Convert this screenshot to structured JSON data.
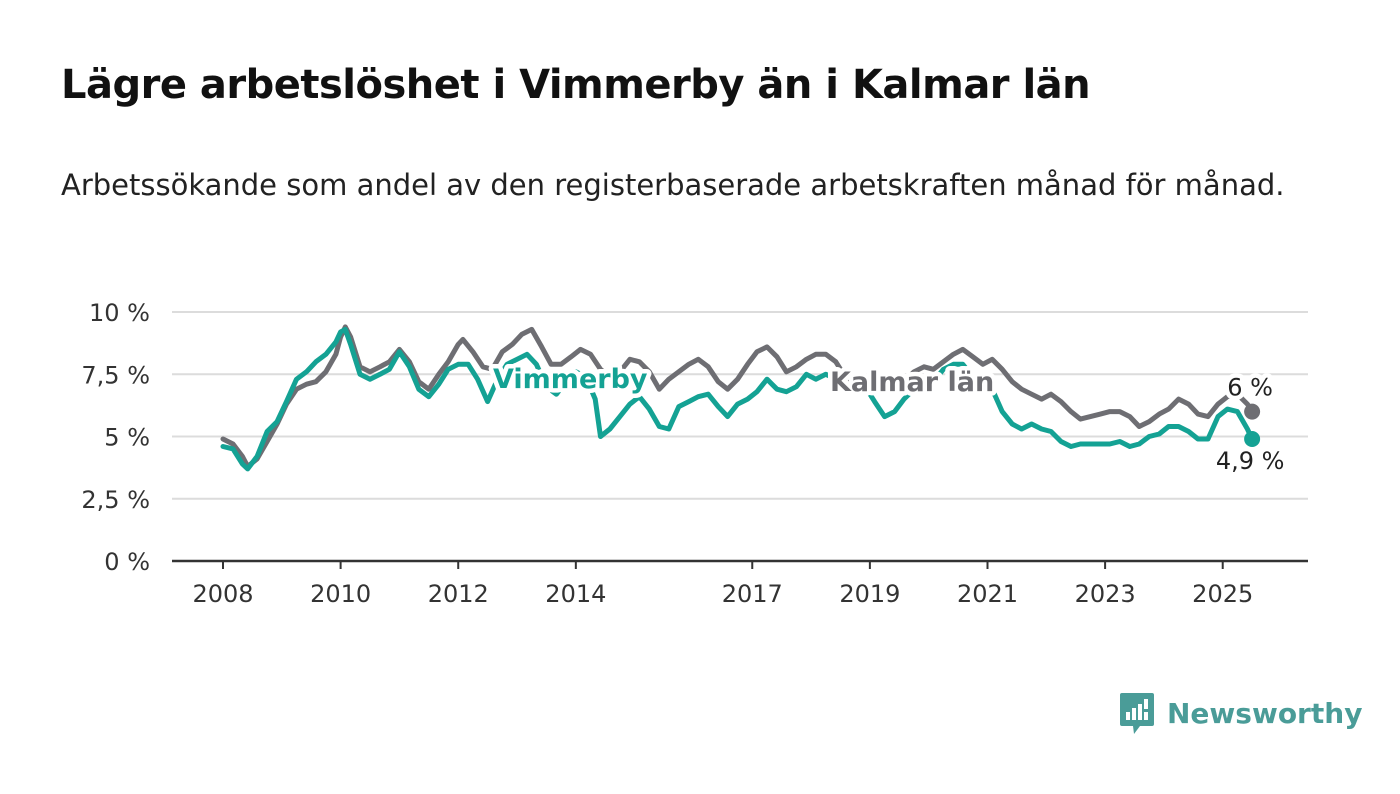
{
  "title": "Lägre arbetslöshet i Vimmerby än i Kalmar län",
  "subtitle": "Arbetssökande som andel av den registerbaserade arbetskraften månad för månad.",
  "brand": {
    "name": "Newsworthy",
    "icon": "newsworthy-logo-icon",
    "color": "#4a9c98"
  },
  "chart_data": {
    "type": "line",
    "title": "Lägre arbetslöshet i Vimmerby än i Kalmar län",
    "subtitle": "Arbetssökande som andel av den registerbaserade arbetskraften månad för månad.",
    "xlabel": "",
    "ylabel": "",
    "xlim": [
      2008.0,
      2025.6
    ],
    "ylim": [
      0,
      10
    ],
    "x_ticks": [
      2008,
      2010,
      2012,
      2014,
      2017,
      2019,
      2021,
      2023,
      2025
    ],
    "x_tick_labels": [
      "2008",
      "2010",
      "2012",
      "2014",
      "2017",
      "2019",
      "2021",
      "2023",
      "2025"
    ],
    "y_ticks": [
      0,
      2.5,
      5,
      7.5,
      10
    ],
    "y_tick_labels": [
      "0 %",
      "2,5 %",
      "5 %",
      "7,5 %",
      "10 %"
    ],
    "grid": true,
    "legend": "inline labels on lines",
    "series": [
      {
        "name": "Kalmar län",
        "color": "#6e6e73",
        "label": "Kalmar län",
        "end_label": "6 %",
        "points": [
          [
            2008.0,
            4.9
          ],
          [
            2008.17,
            4.7
          ],
          [
            2008.33,
            4.2
          ],
          [
            2008.42,
            3.8
          ],
          [
            2008.58,
            4.1
          ],
          [
            2008.75,
            4.8
          ],
          [
            2008.92,
            5.5
          ],
          [
            2009.08,
            6.3
          ],
          [
            2009.25,
            6.9
          ],
          [
            2009.42,
            7.1
          ],
          [
            2009.58,
            7.2
          ],
          [
            2009.75,
            7.6
          ],
          [
            2009.92,
            8.3
          ],
          [
            2010.0,
            9.0
          ],
          [
            2010.08,
            9.4
          ],
          [
            2010.17,
            9.0
          ],
          [
            2010.33,
            7.8
          ],
          [
            2010.5,
            7.6
          ],
          [
            2010.67,
            7.8
          ],
          [
            2010.83,
            8.0
          ],
          [
            2011.0,
            8.5
          ],
          [
            2011.17,
            8.0
          ],
          [
            2011.33,
            7.2
          ],
          [
            2011.5,
            6.9
          ],
          [
            2011.67,
            7.5
          ],
          [
            2011.83,
            8.0
          ],
          [
            2012.0,
            8.7
          ],
          [
            2012.08,
            8.9
          ],
          [
            2012.25,
            8.4
          ],
          [
            2012.42,
            7.8
          ],
          [
            2012.58,
            7.7
          ],
          [
            2012.75,
            8.4
          ],
          [
            2012.92,
            8.7
          ],
          [
            2013.08,
            9.1
          ],
          [
            2013.25,
            9.3
          ],
          [
            2013.42,
            8.6
          ],
          [
            2013.58,
            7.9
          ],
          [
            2013.75,
            7.9
          ],
          [
            2013.92,
            8.2
          ],
          [
            2014.08,
            8.5
          ],
          [
            2014.25,
            8.3
          ],
          [
            2014.42,
            7.7
          ],
          [
            2014.58,
            7.4
          ],
          [
            2014.75,
            7.6
          ],
          [
            2014.92,
            8.1
          ],
          [
            2015.08,
            8.0
          ],
          [
            2015.25,
            7.6
          ],
          [
            2015.42,
            6.9
          ],
          [
            2015.58,
            7.3
          ],
          [
            2015.75,
            7.6
          ],
          [
            2015.92,
            7.9
          ],
          [
            2016.08,
            8.1
          ],
          [
            2016.25,
            7.8
          ],
          [
            2016.42,
            7.2
          ],
          [
            2016.58,
            6.9
          ],
          [
            2016.75,
            7.3
          ],
          [
            2016.92,
            7.9
          ],
          [
            2017.08,
            8.4
          ],
          [
            2017.25,
            8.6
          ],
          [
            2017.42,
            8.2
          ],
          [
            2017.58,
            7.6
          ],
          [
            2017.75,
            7.8
          ],
          [
            2017.92,
            8.1
          ],
          [
            2018.08,
            8.3
          ],
          [
            2018.25,
            8.3
          ],
          [
            2018.42,
            8.0
          ],
          [
            2018.58,
            7.4
          ],
          [
            2018.75,
            7.2
          ],
          [
            2018.92,
            7.4
          ],
          [
            2019.08,
            7.3
          ],
          [
            2019.25,
            7.2
          ],
          [
            2019.42,
            7.3
          ],
          [
            2019.58,
            7.2
          ],
          [
            2019.75,
            7.6
          ],
          [
            2019.92,
            7.8
          ],
          [
            2020.08,
            7.7
          ],
          [
            2020.25,
            8.0
          ],
          [
            2020.42,
            8.3
          ],
          [
            2020.58,
            8.5
          ],
          [
            2020.75,
            8.2
          ],
          [
            2020.92,
            7.9
          ],
          [
            2021.08,
            8.1
          ],
          [
            2021.25,
            7.7
          ],
          [
            2021.42,
            7.2
          ],
          [
            2021.58,
            6.9
          ],
          [
            2021.75,
            6.7
          ],
          [
            2021.92,
            6.5
          ],
          [
            2022.08,
            6.7
          ],
          [
            2022.25,
            6.4
          ],
          [
            2022.42,
            6.0
          ],
          [
            2022.58,
            5.7
          ],
          [
            2022.75,
            5.8
          ],
          [
            2022.92,
            5.9
          ],
          [
            2023.08,
            6.0
          ],
          [
            2023.25,
            6.0
          ],
          [
            2023.42,
            5.8
          ],
          [
            2023.58,
            5.4
          ],
          [
            2023.75,
            5.6
          ],
          [
            2023.92,
            5.9
          ],
          [
            2024.08,
            6.1
          ],
          [
            2024.25,
            6.5
          ],
          [
            2024.42,
            6.3
          ],
          [
            2024.58,
            5.9
          ],
          [
            2024.75,
            5.8
          ],
          [
            2024.92,
            6.3
          ],
          [
            2025.08,
            6.6
          ],
          [
            2025.25,
            6.7
          ],
          [
            2025.42,
            6.3
          ],
          [
            2025.5,
            6.0
          ]
        ]
      },
      {
        "name": "Vimmerby",
        "color": "#14a294",
        "label": "Vimmerby",
        "end_label": "4,9 %",
        "points": [
          [
            2008.0,
            4.6
          ],
          [
            2008.17,
            4.5
          ],
          [
            2008.33,
            3.9
          ],
          [
            2008.42,
            3.7
          ],
          [
            2008.58,
            4.2
          ],
          [
            2008.75,
            5.2
          ],
          [
            2008.92,
            5.6
          ],
          [
            2009.08,
            6.4
          ],
          [
            2009.25,
            7.3
          ],
          [
            2009.42,
            7.6
          ],
          [
            2009.58,
            8.0
          ],
          [
            2009.75,
            8.3
          ],
          [
            2009.92,
            8.8
          ],
          [
            2010.0,
            9.2
          ],
          [
            2010.08,
            9.3
          ],
          [
            2010.17,
            8.7
          ],
          [
            2010.33,
            7.5
          ],
          [
            2010.5,
            7.3
          ],
          [
            2010.67,
            7.5
          ],
          [
            2010.83,
            7.7
          ],
          [
            2011.0,
            8.4
          ],
          [
            2011.17,
            7.8
          ],
          [
            2011.33,
            6.9
          ],
          [
            2011.5,
            6.6
          ],
          [
            2011.67,
            7.1
          ],
          [
            2011.83,
            7.7
          ],
          [
            2012.0,
            7.9
          ],
          [
            2012.17,
            7.9
          ],
          [
            2012.33,
            7.3
          ],
          [
            2012.5,
            6.4
          ],
          [
            2012.67,
            7.3
          ],
          [
            2012.83,
            7.9
          ],
          [
            2013.0,
            8.1
          ],
          [
            2013.17,
            8.3
          ],
          [
            2013.33,
            7.9
          ],
          [
            2013.5,
            7.0
          ],
          [
            2013.67,
            6.7
          ],
          [
            2013.83,
            7.2
          ],
          [
            2014.0,
            7.6
          ],
          [
            2014.17,
            7.4
          ],
          [
            2014.33,
            6.5
          ],
          [
            2014.42,
            5.0
          ],
          [
            2014.58,
            5.3
          ],
          [
            2014.75,
            5.8
          ],
          [
            2014.92,
            6.3
          ],
          [
            2015.08,
            6.6
          ],
          [
            2015.25,
            6.1
          ],
          [
            2015.42,
            5.4
          ],
          [
            2015.58,
            5.3
          ],
          [
            2015.75,
            6.2
          ],
          [
            2015.92,
            6.4
          ],
          [
            2016.08,
            6.6
          ],
          [
            2016.25,
            6.7
          ],
          [
            2016.42,
            6.2
          ],
          [
            2016.58,
            5.8
          ],
          [
            2016.75,
            6.3
          ],
          [
            2016.92,
            6.5
          ],
          [
            2017.08,
            6.8
          ],
          [
            2017.25,
            7.3
          ],
          [
            2017.42,
            6.9
          ],
          [
            2017.58,
            6.8
          ],
          [
            2017.75,
            7.0
          ],
          [
            2017.92,
            7.5
          ],
          [
            2018.08,
            7.3
          ],
          [
            2018.25,
            7.5
          ],
          [
            2018.42,
            7.3
          ],
          [
            2018.58,
            6.8
          ],
          [
            2018.75,
            6.9
          ],
          [
            2018.92,
            7.0
          ],
          [
            2019.08,
            6.4
          ],
          [
            2019.25,
            5.8
          ],
          [
            2019.42,
            6.0
          ],
          [
            2019.58,
            6.5
          ],
          [
            2019.75,
            6.9
          ],
          [
            2019.92,
            6.9
          ],
          [
            2020.08,
            7.2
          ],
          [
            2020.25,
            7.7
          ],
          [
            2020.42,
            7.9
          ],
          [
            2020.58,
            7.9
          ],
          [
            2020.75,
            7.4
          ],
          [
            2020.92,
            7.2
          ],
          [
            2021.08,
            6.9
          ],
          [
            2021.25,
            6.0
          ],
          [
            2021.42,
            5.5
          ],
          [
            2021.58,
            5.3
          ],
          [
            2021.75,
            5.5
          ],
          [
            2021.92,
            5.3
          ],
          [
            2022.08,
            5.2
          ],
          [
            2022.25,
            4.8
          ],
          [
            2022.42,
            4.6
          ],
          [
            2022.58,
            4.7
          ],
          [
            2022.75,
            4.7
          ],
          [
            2022.92,
            4.7
          ],
          [
            2023.08,
            4.7
          ],
          [
            2023.25,
            4.8
          ],
          [
            2023.42,
            4.6
          ],
          [
            2023.58,
            4.7
          ],
          [
            2023.75,
            5.0
          ],
          [
            2023.92,
            5.1
          ],
          [
            2024.08,
            5.4
          ],
          [
            2024.25,
            5.4
          ],
          [
            2024.42,
            5.2
          ],
          [
            2024.58,
            4.9
          ],
          [
            2024.75,
            4.9
          ],
          [
            2024.92,
            5.8
          ],
          [
            2025.08,
            6.1
          ],
          [
            2025.25,
            6.0
          ],
          [
            2025.42,
            5.3
          ],
          [
            2025.5,
            4.9
          ]
        ]
      }
    ]
  }
}
